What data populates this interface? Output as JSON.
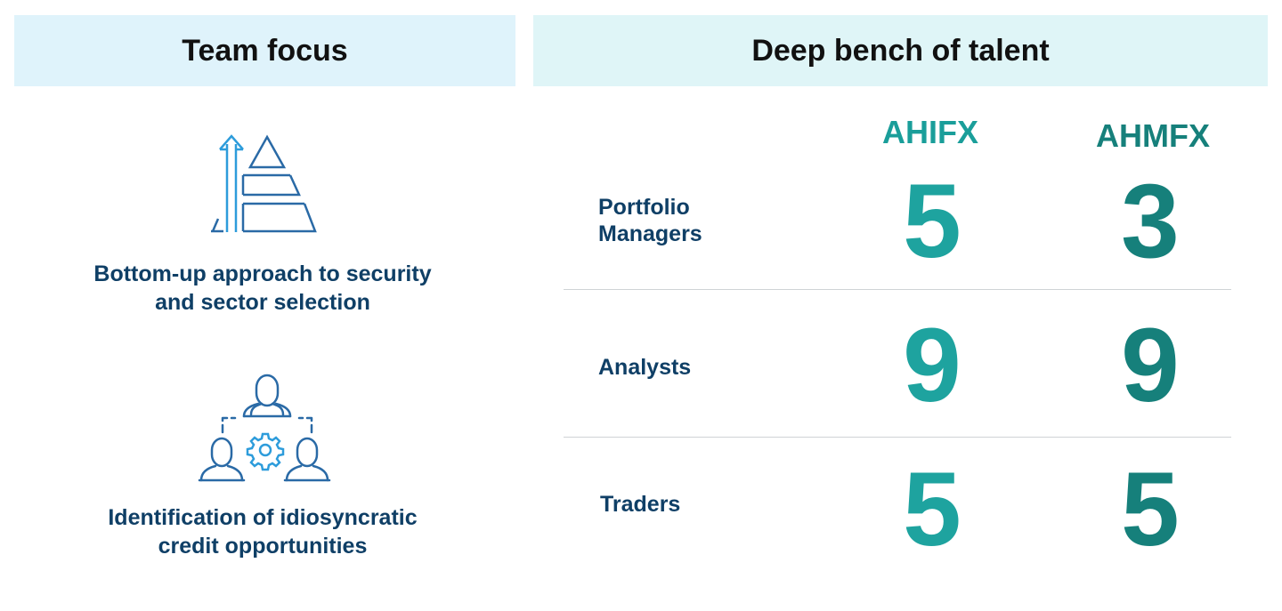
{
  "left_panel": {
    "header": "Team focus",
    "items": [
      {
        "icon": "pyramid-arrow-icon",
        "text": "Bottom-up approach to security and sector selection",
        "line1": "Bottom-up approach to security",
        "line2": "and sector selection"
      },
      {
        "icon": "team-gear-icon",
        "text": "Identification of idiosyncratic credit opportunities",
        "line1": "Identification of idiosyncratic",
        "line2": "credit opportunities"
      }
    ]
  },
  "right_panel": {
    "header": "Deep bench of talent",
    "columns": [
      "AHIFX",
      "AHMFX"
    ],
    "rows": [
      {
        "label_line1": "Portfolio",
        "label_line2": "Managers",
        "AHIFX": "5",
        "AHMFX": "3"
      },
      {
        "label_line1": "Analysts",
        "label_line2": "",
        "AHIFX": "9",
        "AHMFX": "9"
      },
      {
        "label_line1": "Traders",
        "label_line2": "",
        "AHIFX": "5",
        "AHMFX": "5"
      }
    ]
  },
  "colors": {
    "header_left_bg": "#dff3fb",
    "header_right_bg": "#dff5f7",
    "text_navy": "#0f3f66",
    "teal_light": "#1ea39f",
    "teal_dark": "#16807b",
    "icon_blue": "#2a6aa6",
    "icon_light_blue": "#2d9cdb"
  }
}
